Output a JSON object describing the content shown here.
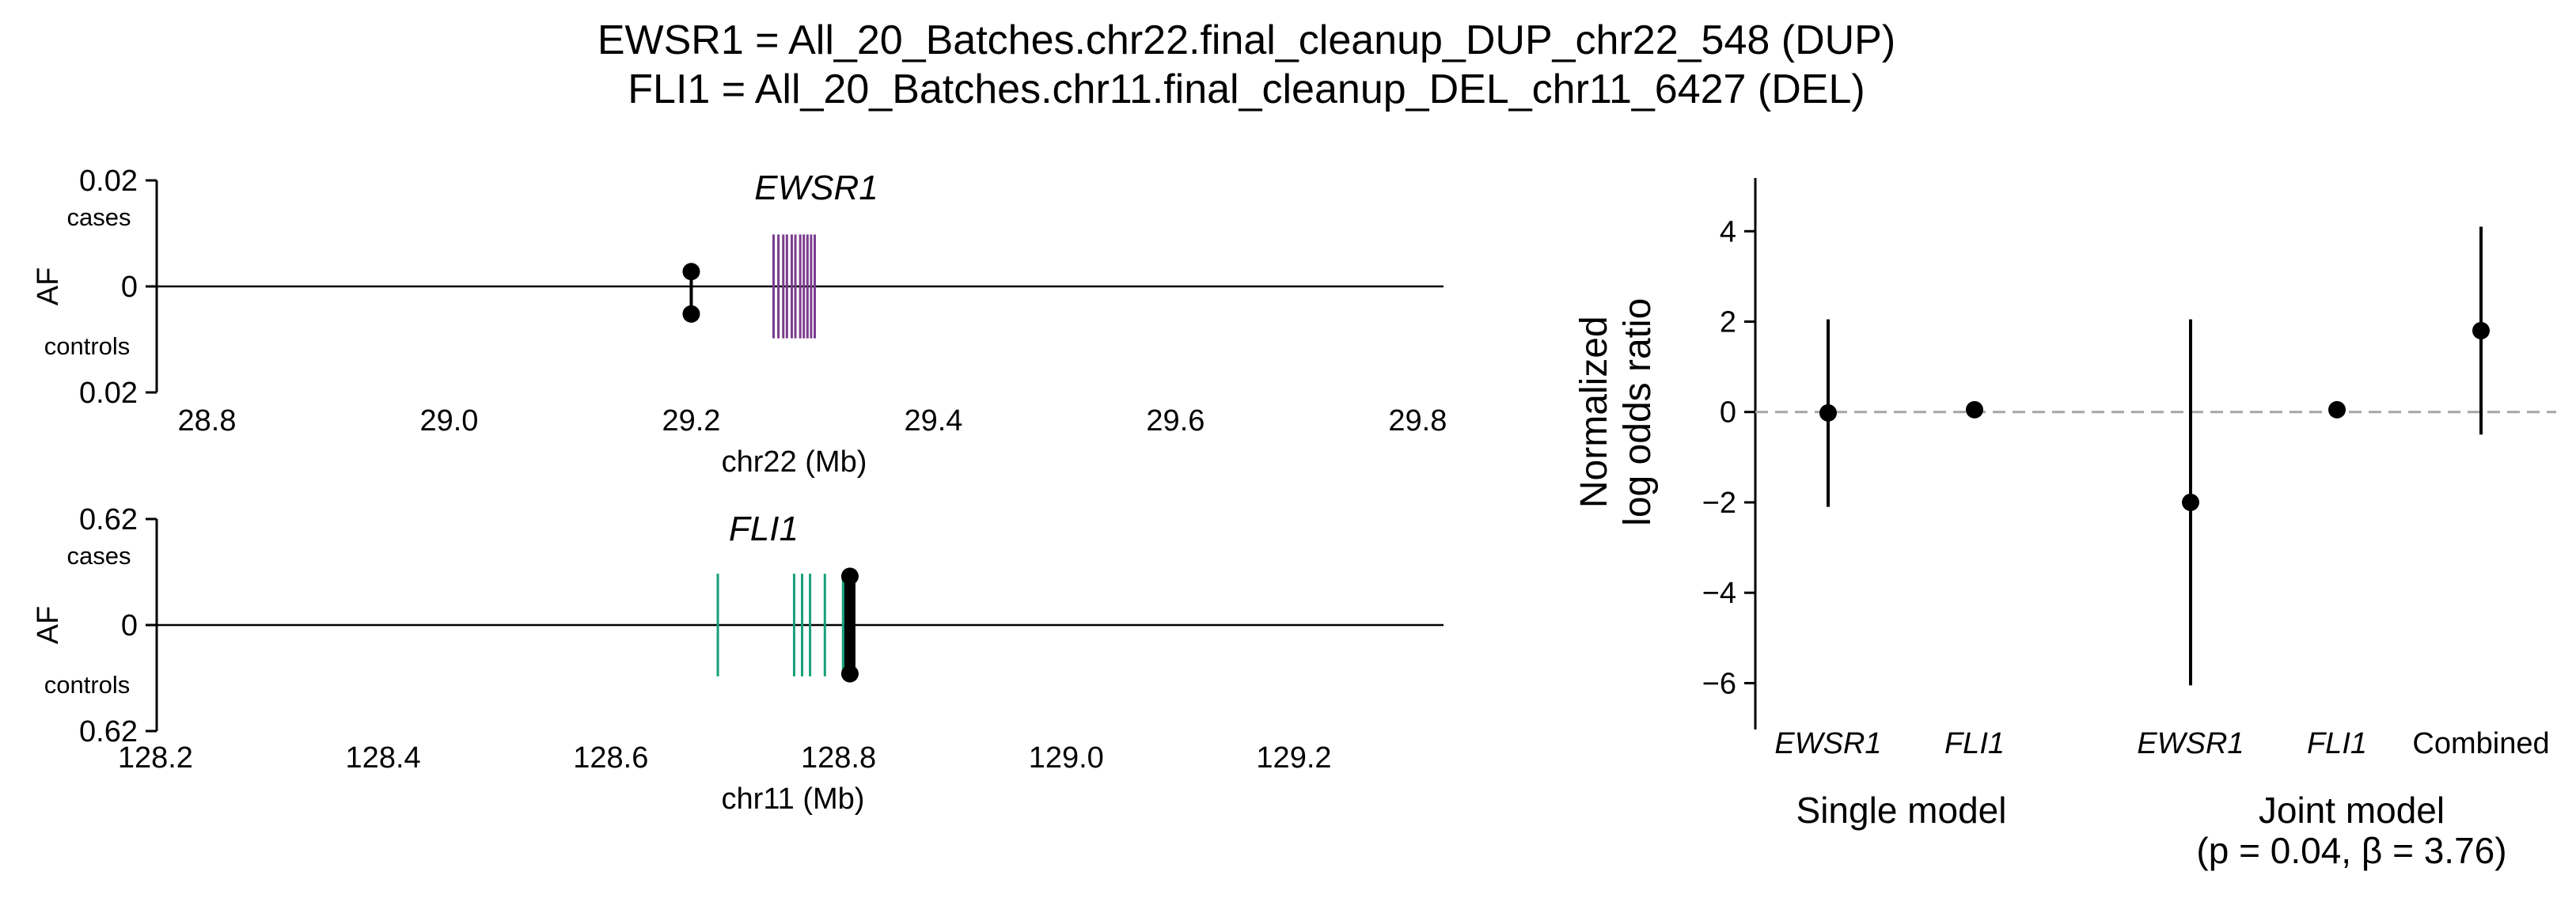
{
  "title": [
    "EWSR1 = All_20_Batches.chr22.final_cleanup_DUP_chr22_548 (DUP)",
    "FLI1 = All_20_Batches.chr11.final_cleanup_DEL_chr11_6427 (DEL)"
  ],
  "chart_data": [
    {
      "type": "locus",
      "gene": "EWSR1",
      "gene_color": "#7b3c8e",
      "xlabel": "chr22 (Mb)",
      "ylabel": "AF",
      "y_top_label": "cases",
      "y_bottom_label": "controls",
      "y_top_tick": "0.02",
      "y_zero_tick": "0",
      "y_bottom_tick": "0.02",
      "af_max": 0.02,
      "xlim": [
        28.75,
        29.82
      ],
      "xticks": [
        {
          "v": 28.8,
          "label": "28.8"
        },
        {
          "v": 29.0,
          "label": "29.0"
        },
        {
          "v": 29.2,
          "label": "29.2"
        },
        {
          "v": 29.4,
          "label": "29.4"
        },
        {
          "v": 29.6,
          "label": "29.6"
        },
        {
          "v": 29.8,
          "label": "29.8"
        }
      ],
      "exons": [
        29.268,
        29.272,
        29.276,
        29.279,
        29.283,
        29.286,
        29.29,
        29.293,
        29.296,
        29.299,
        29.302
      ],
      "exon_half_height_af": 0.0098,
      "variant": {
        "pos": 29.2,
        "case_af": 0.0028,
        "control_af": 0.0052
      }
    },
    {
      "type": "locus",
      "gene": "FLI1",
      "gene_color": "#16a07a",
      "xlabel": "chr11 (Mb)",
      "ylabel": "AF",
      "y_top_label": "cases",
      "y_bottom_label": "controls",
      "y_top_tick": "0.62",
      "y_zero_tick": "0",
      "y_bottom_tick": "0.62",
      "af_max": 0.62,
      "xlim": [
        128.19,
        129.33
      ],
      "xticks": [
        {
          "v": 128.2,
          "label": "128.2"
        },
        {
          "v": 128.4,
          "label": "128.4"
        },
        {
          "v": 128.6,
          "label": "128.6"
        },
        {
          "v": 128.8,
          "label": "128.8"
        },
        {
          "v": 129.0,
          "label": "129.0"
        },
        {
          "v": 129.2,
          "label": "129.2"
        }
      ],
      "exons": [
        128.694,
        128.761,
        128.768,
        128.775,
        128.788,
        128.804,
        128.806,
        128.808,
        128.81,
        128.812
      ],
      "exon_half_height_af": 0.3,
      "variant": {
        "pos": 128.81,
        "case_af": 0.285,
        "control_af": 0.285
      }
    },
    {
      "type": "scatter",
      "subtype": "forest",
      "ylabel": [
        "Normalized",
        "log odds ratio"
      ],
      "ylim": [
        -6.5,
        4.6
      ],
      "yticks": [
        {
          "v": 4,
          "label": "4"
        },
        {
          "v": 2,
          "label": "2"
        },
        {
          "v": 0,
          "label": "0"
        },
        {
          "v": -2,
          "label": "−2"
        },
        {
          "v": -4,
          "label": "−4"
        },
        {
          "v": -6,
          "label": "−6"
        }
      ],
      "reference_line": 0,
      "points": [
        {
          "label": "EWSR1",
          "italic": true,
          "est": -0.02,
          "lo": -2.1,
          "hi": 2.05
        },
        {
          "label": "FLI1",
          "italic": true,
          "est": 0.05,
          "lo": -0.1,
          "hi": 0.2
        },
        {
          "label": "EWSR1",
          "italic": true,
          "est": -2.0,
          "lo": -6.05,
          "hi": 2.05
        },
        {
          "label": "FLI1",
          "italic": true,
          "est": 0.05,
          "lo": -0.1,
          "hi": 0.2
        },
        {
          "label": "Combined",
          "italic": false,
          "est": 1.8,
          "lo": -0.5,
          "hi": 4.1
        }
      ],
      "groups": [
        {
          "name": "Single model",
          "lines": [
            "Single model"
          ]
        },
        {
          "name": "Joint model",
          "lines": [
            "Joint model",
            "(p = 0.04, β = 3.76)"
          ]
        }
      ]
    }
  ]
}
